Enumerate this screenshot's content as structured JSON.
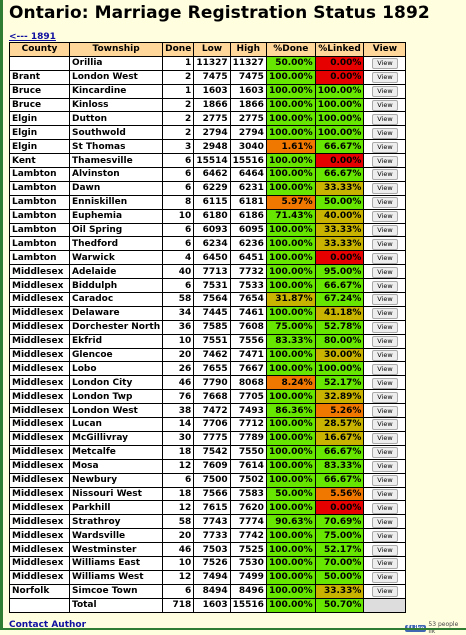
{
  "title": "Ontario: Marriage Registration Status 1892",
  "back_link": "<--- 1891",
  "headers": [
    "County",
    "Township",
    "Done",
    "Low",
    "High",
    "%Done",
    "%Linked",
    "View"
  ],
  "view_label": "View",
  "rows": [
    [
      "",
      "Orillia",
      "1",
      "11327",
      "11327",
      "50.00%",
      "0.00%"
    ],
    [
      "Brant",
      "London West",
      "2",
      "7475",
      "7475",
      "100.00%",
      "0.00%"
    ],
    [
      "Bruce",
      "Kincardine",
      "1",
      "1603",
      "1603",
      "100.00%",
      "100.00%"
    ],
    [
      "Bruce",
      "Kinloss",
      "2",
      "1866",
      "1866",
      "100.00%",
      "100.00%"
    ],
    [
      "Elgin",
      "Dutton",
      "2",
      "2775",
      "2775",
      "100.00%",
      "100.00%"
    ],
    [
      "Elgin",
      "Southwold",
      "2",
      "2794",
      "2794",
      "100.00%",
      "100.00%"
    ],
    [
      "Elgin",
      "St Thomas",
      "3",
      "2948",
      "3040",
      "1.61%",
      "66.67%"
    ],
    [
      "Kent",
      "Thamesville",
      "6",
      "15514",
      "15516",
      "100.00%",
      "0.00%"
    ],
    [
      "Lambton",
      "Alvinston",
      "6",
      "6462",
      "6464",
      "100.00%",
      "66.67%"
    ],
    [
      "Lambton",
      "Dawn",
      "6",
      "6229",
      "6231",
      "100.00%",
      "33.33%"
    ],
    [
      "Lambton",
      "Enniskillen",
      "8",
      "6115",
      "6181",
      "5.97%",
      "50.00%"
    ],
    [
      "Lambton",
      "Euphemia",
      "10",
      "6180",
      "6186",
      "71.43%",
      "40.00%"
    ],
    [
      "Lambton",
      "Oil Spring",
      "6",
      "6093",
      "6095",
      "100.00%",
      "33.33%"
    ],
    [
      "Lambton",
      "Thedford",
      "6",
      "6234",
      "6236",
      "100.00%",
      "33.33%"
    ],
    [
      "Lambton",
      "Warwick",
      "4",
      "6450",
      "6451",
      "100.00%",
      "0.00%"
    ],
    [
      "Middlesex",
      "Adelaide",
      "40",
      "7713",
      "7732",
      "100.00%",
      "95.00%"
    ],
    [
      "Middlesex",
      "Biddulph",
      "6",
      "7531",
      "7533",
      "100.00%",
      "66.67%"
    ],
    [
      "Middlesex",
      "Caradoc",
      "58",
      "7564",
      "7654",
      "31.87%",
      "67.24%"
    ],
    [
      "Middlesex",
      "Delaware",
      "34",
      "7445",
      "7461",
      "100.00%",
      "41.18%"
    ],
    [
      "Middlesex",
      "Dorchester North",
      "36",
      "7585",
      "7608",
      "75.00%",
      "52.78%"
    ],
    [
      "Middlesex",
      "Ekfrid",
      "10",
      "7551",
      "7556",
      "83.33%",
      "80.00%"
    ],
    [
      "Middlesex",
      "Glencoe",
      "20",
      "7462",
      "7471",
      "100.00%",
      "30.00%"
    ],
    [
      "Middlesex",
      "Lobo",
      "26",
      "7655",
      "7667",
      "100.00%",
      "100.00%"
    ],
    [
      "Middlesex",
      "London City",
      "46",
      "7790",
      "8068",
      "8.24%",
      "52.17%"
    ],
    [
      "Middlesex",
      "London Twp",
      "76",
      "7668",
      "7705",
      "100.00%",
      "32.89%"
    ],
    [
      "Middlesex",
      "London West",
      "38",
      "7472",
      "7493",
      "86.36%",
      "5.26%"
    ],
    [
      "Middlesex",
      "Lucan",
      "14",
      "7706",
      "7712",
      "100.00%",
      "28.57%"
    ],
    [
      "Middlesex",
      "McGillivray",
      "30",
      "7775",
      "7789",
      "100.00%",
      "16.67%"
    ],
    [
      "Middlesex",
      "Metcalfe",
      "18",
      "7542",
      "7550",
      "100.00%",
      "66.67%"
    ],
    [
      "Middlesex",
      "Mosa",
      "12",
      "7609",
      "7614",
      "100.00%",
      "83.33%"
    ],
    [
      "Middlesex",
      "Newbury",
      "6",
      "7500",
      "7502",
      "100.00%",
      "66.67%"
    ],
    [
      "Middlesex",
      "Nissouri West",
      "18",
      "7566",
      "7583",
      "50.00%",
      "5.56%"
    ],
    [
      "Middlesex",
      "Parkhill",
      "12",
      "7615",
      "7620",
      "100.00%",
      "0.00%"
    ],
    [
      "Middlesex",
      "Strathroy",
      "58",
      "7743",
      "7774",
      "90.63%",
      "70.69%"
    ],
    [
      "Middlesex",
      "Wardsville",
      "20",
      "7733",
      "7742",
      "100.00%",
      "75.00%"
    ],
    [
      "Middlesex",
      "Westminster",
      "46",
      "7503",
      "7525",
      "100.00%",
      "52.17%"
    ],
    [
      "Middlesex",
      "Williams East",
      "10",
      "7526",
      "7530",
      "100.00%",
      "70.00%"
    ],
    [
      "Middlesex",
      "Williams West",
      "12",
      "7494",
      "7499",
      "100.00%",
      "50.00%"
    ],
    [
      "Norfolk",
      "Simcoe Town",
      "6",
      "8494",
      "8496",
      "100.00%",
      "33.33%"
    ]
  ],
  "total": [
    "",
    "Total",
    "718",
    "1603",
    "15516",
    "100.00%",
    "50.70%"
  ],
  "contact": "Contact Author",
  "like": {
    "button": "Like",
    "count_text": "53 people lik"
  },
  "colors": {
    "green": "#66e600",
    "olive": "#c8b400",
    "orange": "#f07800",
    "red": "#e60000"
  }
}
